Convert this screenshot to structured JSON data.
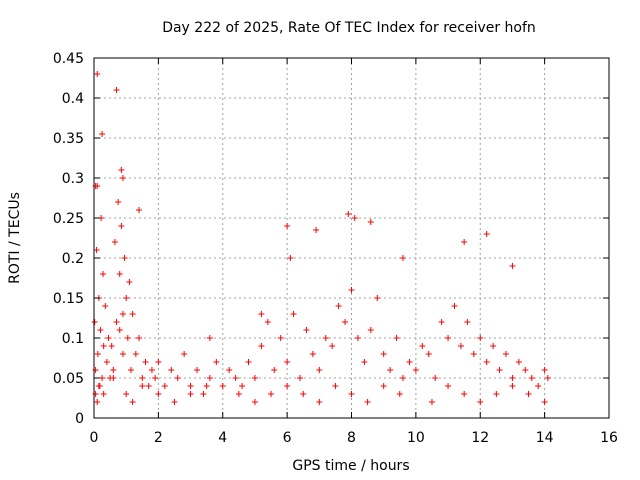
{
  "chart_data": {
    "type": "scatter",
    "title": "Day 222 of 2025, Rate Of TEC Index for receiver hofn",
    "xlabel": "GPS time / hours",
    "ylabel": "ROTI / TECUs",
    "xlim": [
      0,
      16
    ],
    "ylim": [
      0,
      0.45
    ],
    "x_ticks": [
      0,
      2,
      4,
      6,
      8,
      10,
      12,
      14,
      16
    ],
    "x_tick_labels": [
      "0",
      "2",
      "4",
      "6",
      "8",
      "10",
      "12",
      "14",
      "16"
    ],
    "y_ticks": [
      0,
      0.05,
      0.1,
      0.15,
      0.2,
      0.25,
      0.3,
      0.35,
      0.4,
      0.45
    ],
    "y_tick_labels": [
      "0",
      "0.05",
      "0.1",
      "0.15",
      "0.2",
      "0.25",
      "0.3",
      "0.35",
      "0.4",
      "0.45"
    ],
    "grid": true,
    "marker": "plus",
    "color": "#ff0000",
    "series": [
      {
        "x": [
          0.02,
          0.05,
          0.08,
          0.1,
          0.12,
          0.15,
          0.18,
          0.2,
          0.22,
          0.25,
          0.28,
          0.3,
          0.35,
          0.4,
          0.45,
          0.5,
          0.55,
          0.6,
          0.65,
          0.7,
          0.75,
          0.8,
          0.85,
          0.9,
          0.95,
          1.0,
          1.05,
          1.1,
          1.15,
          1.2,
          1.3,
          1.4,
          1.5,
          1.6,
          1.7,
          1.8,
          1.9,
          2.0,
          2.2,
          2.4,
          2.6,
          2.8,
          3.0,
          3.2,
          3.4,
          3.6,
          3.8,
          4.0,
          4.2,
          4.4,
          4.6,
          4.8,
          5.0,
          5.2,
          5.4,
          5.6,
          5.8,
          6.0,
          6.2,
          6.4,
          6.6,
          6.8,
          7.0,
          7.2,
          7.4,
          7.6,
          7.8,
          8.0,
          8.2,
          8.4,
          8.6,
          8.8,
          9.0,
          9.2,
          9.4,
          9.6,
          9.8,
          10.0,
          10.2,
          10.4,
          10.6,
          10.8,
          11.0,
          11.2,
          11.4,
          11.6,
          11.8,
          12.0,
          12.2,
          12.4,
          12.6,
          12.8,
          13.0,
          13.2,
          13.4,
          13.6,
          13.8,
          14.0,
          14.1,
          0.05,
          0.1,
          0.15,
          0.3,
          0.6,
          0.8,
          0.9,
          1.0,
          1.2,
          1.5,
          2.0,
          2.5,
          3.0,
          3.5,
          4.5,
          5.0,
          5.5,
          6.0,
          6.5,
          7.0,
          7.5,
          8.0,
          8.5,
          9.0,
          9.5,
          10.5,
          11.0,
          11.5,
          12.0,
          12.5,
          13.0,
          13.5,
          14.0,
          0.1,
          0.7,
          0.9,
          0.05,
          0.25,
          0.85,
          1.4,
          3.6,
          5.2,
          6.0,
          6.1,
          6.9,
          7.9,
          8.1,
          8.6,
          9.6,
          11.5,
          12.2,
          13.0
        ],
        "y": [
          0.12,
          0.06,
          0.21,
          0.29,
          0.08,
          0.15,
          0.04,
          0.11,
          0.25,
          0.05,
          0.18,
          0.03,
          0.14,
          0.07,
          0.1,
          0.05,
          0.09,
          0.06,
          0.22,
          0.12,
          0.27,
          0.18,
          0.24,
          0.08,
          0.2,
          0.15,
          0.1,
          0.17,
          0.06,
          0.13,
          0.08,
          0.1,
          0.05,
          0.07,
          0.04,
          0.06,
          0.05,
          0.07,
          0.04,
          0.06,
          0.05,
          0.08,
          0.04,
          0.06,
          0.03,
          0.05,
          0.07,
          0.04,
          0.06,
          0.05,
          0.04,
          0.07,
          0.05,
          0.09,
          0.12,
          0.06,
          0.1,
          0.07,
          0.13,
          0.05,
          0.11,
          0.08,
          0.06,
          0.1,
          0.09,
          0.14,
          0.12,
          0.16,
          0.1,
          0.07,
          0.11,
          0.15,
          0.08,
          0.06,
          0.1,
          0.05,
          0.07,
          0.06,
          0.09,
          0.08,
          0.05,
          0.12,
          0.1,
          0.14,
          0.09,
          0.12,
          0.08,
          0.1,
          0.07,
          0.09,
          0.06,
          0.08,
          0.05,
          0.07,
          0.06,
          0.05,
          0.04,
          0.06,
          0.05,
          0.03,
          0.02,
          0.04,
          0.09,
          0.05,
          0.11,
          0.13,
          0.03,
          0.02,
          0.04,
          0.03,
          0.02,
          0.03,
          0.04,
          0.03,
          0.02,
          0.03,
          0.04,
          0.03,
          0.02,
          0.04,
          0.03,
          0.02,
          0.04,
          0.03,
          0.02,
          0.04,
          0.03,
          0.02,
          0.03,
          0.04,
          0.03,
          0.02,
          0.43,
          0.41,
          0.3,
          0.29,
          0.355,
          0.31,
          0.26,
          0.1,
          0.13,
          0.24,
          0.2,
          0.235,
          0.255,
          0.25,
          0.245,
          0.2,
          0.22,
          0.23,
          0.19
        ]
      }
    ]
  }
}
